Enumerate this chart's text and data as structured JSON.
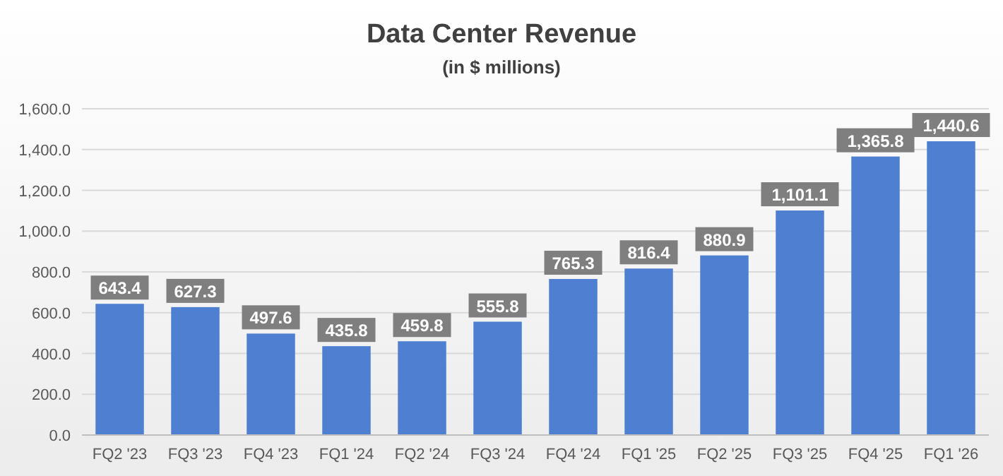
{
  "chart_data": {
    "type": "bar",
    "title": "Data Center Revenue",
    "subtitle": "(in $ millions)",
    "categories": [
      "FQ2 '23",
      "FQ3 '23",
      "FQ4 '23",
      "FQ1 '24",
      "FQ2 '24",
      "FQ3 '24",
      "FQ4 '24",
      "FQ1 '25",
      "FQ2 '25",
      "FQ3 '25",
      "FQ4 '25",
      "FQ1 '26"
    ],
    "values": [
      643.4,
      627.3,
      497.6,
      435.8,
      459.8,
      555.8,
      765.3,
      816.4,
      880.9,
      1101.1,
      1365.8,
      1440.6
    ],
    "color": "#4f7fd0",
    "ylim": [
      0,
      1600
    ],
    "yticks": [
      {
        "value": 0,
        "label": "0.0"
      },
      {
        "value": 200,
        "label": "200.0"
      },
      {
        "value": 400,
        "label": "400.0"
      },
      {
        "value": 600,
        "label": "600.0"
      },
      {
        "value": 800,
        "label": "800.0"
      },
      {
        "value": 1000,
        "label": "1,000.0"
      },
      {
        "value": 1200,
        "label": "1,200.0"
      },
      {
        "value": 1400,
        "label": "1,400.0"
      },
      {
        "value": 1600,
        "label": "1,600.0"
      }
    ],
    "value_labels": [
      "643.4",
      "627.3",
      "497.6",
      "435.8",
      "459.8",
      "555.8",
      "765.3",
      "816.4",
      "880.9",
      "1,101.1",
      "1,365.8",
      "1,440.6"
    ],
    "grid": true
  }
}
